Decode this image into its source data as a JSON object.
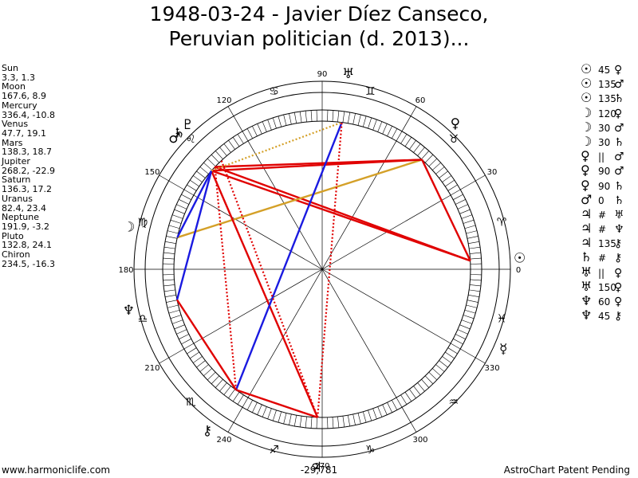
{
  "title": {
    "line1": "1948-03-24 - Javier Díez Canseco,",
    "line2": "Peruvian politician (d. 2013)..."
  },
  "planets": [
    {
      "name": "Sun",
      "coords": "3.3, 1.3"
    },
    {
      "name": "Moon",
      "coords": "167.6, 8.9"
    },
    {
      "name": "Mercury",
      "coords": "336.4, -10.8"
    },
    {
      "name": "Venus",
      "coords": "47.7, 19.1"
    },
    {
      "name": "Mars",
      "coords": "138.3, 18.7"
    },
    {
      "name": "Jupiter",
      "coords": "268.2, -22.9"
    },
    {
      "name": "Saturn",
      "coords": "136.3, 17.2"
    },
    {
      "name": "Uranus",
      "coords": "82.4, 23.4"
    },
    {
      "name": "Neptune",
      "coords": "191.9, -3.2"
    },
    {
      "name": "Pluto",
      "coords": "132.8, 24.1"
    },
    {
      "name": "Chiron",
      "coords": "234.5, -16.3"
    }
  ],
  "aspects": [
    {
      "g1": "☉",
      "angle": "45",
      "g2": "♀"
    },
    {
      "g1": "☉",
      "angle": "135",
      "g2": "♂"
    },
    {
      "g1": "☉",
      "angle": "135",
      "g2": "♄"
    },
    {
      "g1": "☽",
      "angle": "120",
      "g2": "♀"
    },
    {
      "g1": "☽",
      "angle": "30",
      "g2": "♂"
    },
    {
      "g1": "☽",
      "angle": "30",
      "g2": "♄"
    },
    {
      "g1": "♀",
      "angle": "||",
      "g2": "♂"
    },
    {
      "g1": "♀",
      "angle": "90",
      "g2": "♂"
    },
    {
      "g1": "♀",
      "angle": "90",
      "g2": "♄"
    },
    {
      "g1": "♂",
      "angle": "0",
      "g2": "♄"
    },
    {
      "g1": "♃",
      "angle": "#",
      "g2": "♅"
    },
    {
      "g1": "♃",
      "angle": "#",
      "g2": "♆"
    },
    {
      "g1": "♃",
      "angle": "135",
      "g2": "⚷"
    },
    {
      "g1": "♄",
      "angle": "#",
      "g2": "⚷"
    },
    {
      "g1": "♅",
      "angle": "||",
      "g2": "♀"
    },
    {
      "g1": "♅",
      "angle": "150",
      "g2": "♀"
    },
    {
      "g1": "♆",
      "angle": "60",
      "g2": "♀"
    },
    {
      "g1": "♆",
      "angle": "45",
      "g2": "⚷"
    }
  ],
  "wheel": {
    "degree_labels": [
      {
        "deg": 0,
        "text": "0"
      },
      {
        "deg": 30,
        "text": "30"
      },
      {
        "deg": 60,
        "text": "60"
      },
      {
        "deg": 90,
        "text": "90"
      },
      {
        "deg": 120,
        "text": "120"
      },
      {
        "deg": 150,
        "text": "150"
      },
      {
        "deg": 180,
        "text": "180"
      },
      {
        "deg": 210,
        "text": "210"
      },
      {
        "deg": 240,
        "text": "240"
      },
      {
        "deg": 270,
        "text": "270"
      },
      {
        "deg": 300,
        "text": "300"
      },
      {
        "deg": 330,
        "text": "330"
      }
    ],
    "zodiac": [
      {
        "deg": 15,
        "glyph": "♈"
      },
      {
        "deg": 45,
        "glyph": "♉"
      },
      {
        "deg": 75,
        "glyph": "♊"
      },
      {
        "deg": 105,
        "glyph": "♋"
      },
      {
        "deg": 135,
        "glyph": "♌"
      },
      {
        "deg": 165,
        "glyph": "♍"
      },
      {
        "deg": 195,
        "glyph": "♎"
      },
      {
        "deg": 225,
        "glyph": "♏"
      },
      {
        "deg": 255,
        "glyph": "♐"
      },
      {
        "deg": 285,
        "glyph": "♑"
      },
      {
        "deg": 315,
        "glyph": "♒"
      },
      {
        "deg": 345,
        "glyph": "♓"
      }
    ],
    "bodies": [
      {
        "key": "sun",
        "deg": 3.3,
        "glyph": "☉"
      },
      {
        "key": "moon",
        "deg": 167.6,
        "glyph": "☽"
      },
      {
        "key": "mercury",
        "deg": 336.4,
        "glyph": "☿"
      },
      {
        "key": "venus",
        "deg": 47.7,
        "glyph": "♀"
      },
      {
        "key": "mars",
        "deg": 138.3,
        "glyph": "♂"
      },
      {
        "key": "jupiter",
        "deg": 268.2,
        "glyph": "♃"
      },
      {
        "key": "saturn",
        "deg": 136.3,
        "glyph": "♄"
      },
      {
        "key": "uranus",
        "deg": 82.4,
        "glyph": "♅"
      },
      {
        "key": "neptune",
        "deg": 191.9,
        "glyph": "♆"
      },
      {
        "key": "pluto",
        "deg": 132.8,
        "glyph": "♇"
      },
      {
        "key": "chiron",
        "deg": 234.5,
        "glyph": "⚷"
      }
    ],
    "aspect_lines": [
      {
        "from": "sun",
        "to": "venus",
        "color": "#e00000",
        "style": "solid"
      },
      {
        "from": "sun",
        "to": "mars",
        "color": "#e00000",
        "style": "solid"
      },
      {
        "from": "sun",
        "to": "saturn",
        "color": "#e00000",
        "style": "solid"
      },
      {
        "from": "moon",
        "to": "venus",
        "color": "#d4a028",
        "style": "solid"
      },
      {
        "from": "moon",
        "to": "mars",
        "color": "#1a1ae0",
        "style": "solid"
      },
      {
        "from": "venus",
        "to": "mars",
        "color": "#e00000",
        "style": "solid"
      },
      {
        "from": "venus",
        "to": "saturn",
        "color": "#e00000",
        "style": "solid"
      },
      {
        "from": "jupiter",
        "to": "mars",
        "color": "#e00000",
        "style": "solid"
      },
      {
        "from": "jupiter",
        "to": "chiron",
        "color": "#e00000",
        "style": "solid"
      },
      {
        "from": "neptune",
        "to": "mars",
        "color": "#1a1ae0",
        "style": "solid"
      },
      {
        "from": "neptune",
        "to": "chiron",
        "color": "#e00000",
        "style": "solid"
      },
      {
        "from": "chiron",
        "to": "uranus",
        "color": "#1a1ae0",
        "style": "solid"
      },
      {
        "from": "jupiter",
        "to": "uranus",
        "color": "#e00000",
        "style": "dotted"
      },
      {
        "from": "jupiter",
        "to": "pluto",
        "color": "#e00000",
        "style": "dotted"
      },
      {
        "from": "mars",
        "to": "uranus",
        "color": "#d4a028",
        "style": "dotted"
      },
      {
        "from": "saturn",
        "to": "chiron",
        "color": "#e00000",
        "style": "dotted"
      }
    ],
    "center_label": "-29,781"
  },
  "footer": {
    "left": "www.harmoniclife.com",
    "right": "AstroChart Patent Pending"
  }
}
